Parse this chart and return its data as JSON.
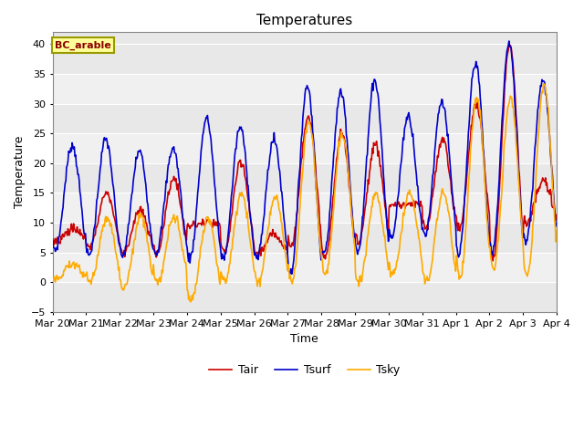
{
  "title": "Temperatures",
  "xlabel": "Time",
  "ylabel": "Temperature",
  "ylim": [
    -5,
    42
  ],
  "annotation": "BC_arable",
  "legend": [
    "Tair",
    "Tsurf",
    "Tsky"
  ],
  "legend_colors": [
    "#cc0000",
    "#0000cc",
    "#ffaa00"
  ],
  "xtick_labels": [
    "Mar 20",
    "Mar 21",
    "Mar 22",
    "Mar 23",
    "Mar 24",
    "Mar 25",
    "Mar 26",
    "Mar 27",
    "Mar 28",
    "Mar 29",
    "Mar 30",
    "Mar 31",
    "Apr 1",
    "Apr 2",
    "Apr 3",
    "Apr 4"
  ],
  "plot_bg": "#e8e8e8",
  "band_light": "#f0f0f0",
  "fig_bg": "#ffffff",
  "title_fontsize": 11,
  "label_fontsize": 9,
  "tick_fontsize": 8
}
